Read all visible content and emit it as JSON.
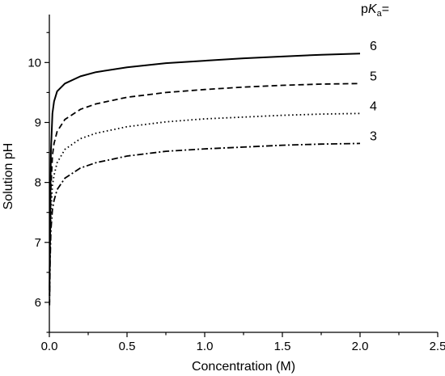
{
  "chart_data": {
    "type": "line",
    "xlabel": "Concentration (M)",
    "ylabel": "Solution pH",
    "xlim": [
      0.0,
      2.5
    ],
    "ylim": [
      5.5,
      10.8
    ],
    "xticks": [
      0.0,
      0.5,
      1.0,
      1.5,
      2.0,
      2.5
    ],
    "xtick_labels": [
      "0.0",
      "0.5",
      "1.0",
      "1.5",
      "2.0",
      "2.5"
    ],
    "yticks": [
      6,
      7,
      8,
      9,
      10
    ],
    "ytick_labels": [
      "6",
      "7",
      "8",
      "9",
      "10"
    ],
    "grid": false,
    "legend_title": {
      "prefix": "p",
      "italic": "K",
      "sub": "a",
      "suffix": "="
    },
    "series": [
      {
        "name": "6",
        "style": "solid",
        "x": [
          0.001,
          0.005,
          0.01,
          0.02,
          0.03,
          0.05,
          0.1,
          0.2,
          0.3,
          0.5,
          0.75,
          1.0,
          1.25,
          1.5,
          1.75,
          2.0
        ],
        "y": [
          6.2,
          7.4,
          8.5,
          9.15,
          9.35,
          9.52,
          9.65,
          9.77,
          9.84,
          9.92,
          9.99,
          10.03,
          10.07,
          10.1,
          10.13,
          10.15
        ]
      },
      {
        "name": "5",
        "style": "dashed",
        "x": [
          0.001,
          0.005,
          0.01,
          0.02,
          0.03,
          0.05,
          0.1,
          0.2,
          0.3,
          0.5,
          0.75,
          1.0,
          1.25,
          1.5,
          1.75,
          2.0
        ],
        "y": [
          6.1,
          7.1,
          7.9,
          8.45,
          8.65,
          8.85,
          9.05,
          9.22,
          9.31,
          9.42,
          9.5,
          9.55,
          9.59,
          9.62,
          9.64,
          9.65
        ]
      },
      {
        "name": "4",
        "style": "dotted",
        "x": [
          0.001,
          0.005,
          0.01,
          0.02,
          0.03,
          0.05,
          0.1,
          0.2,
          0.3,
          0.5,
          0.75,
          1.0,
          1.25,
          1.5,
          1.75,
          2.0
        ],
        "y": [
          6.0,
          6.9,
          7.5,
          7.95,
          8.12,
          8.33,
          8.55,
          8.73,
          8.82,
          8.93,
          9.01,
          9.06,
          9.09,
          9.12,
          9.14,
          9.15
        ]
      },
      {
        "name": "3",
        "style": "dashdot",
        "x": [
          0.001,
          0.005,
          0.01,
          0.02,
          0.03,
          0.05,
          0.1,
          0.2,
          0.3,
          0.5,
          0.75,
          1.0,
          1.25,
          1.5,
          1.75,
          2.0
        ],
        "y": [
          5.95,
          6.7,
          7.2,
          7.55,
          7.7,
          7.88,
          8.07,
          8.24,
          8.33,
          8.44,
          8.52,
          8.56,
          8.59,
          8.62,
          8.64,
          8.65
        ]
      }
    ]
  }
}
